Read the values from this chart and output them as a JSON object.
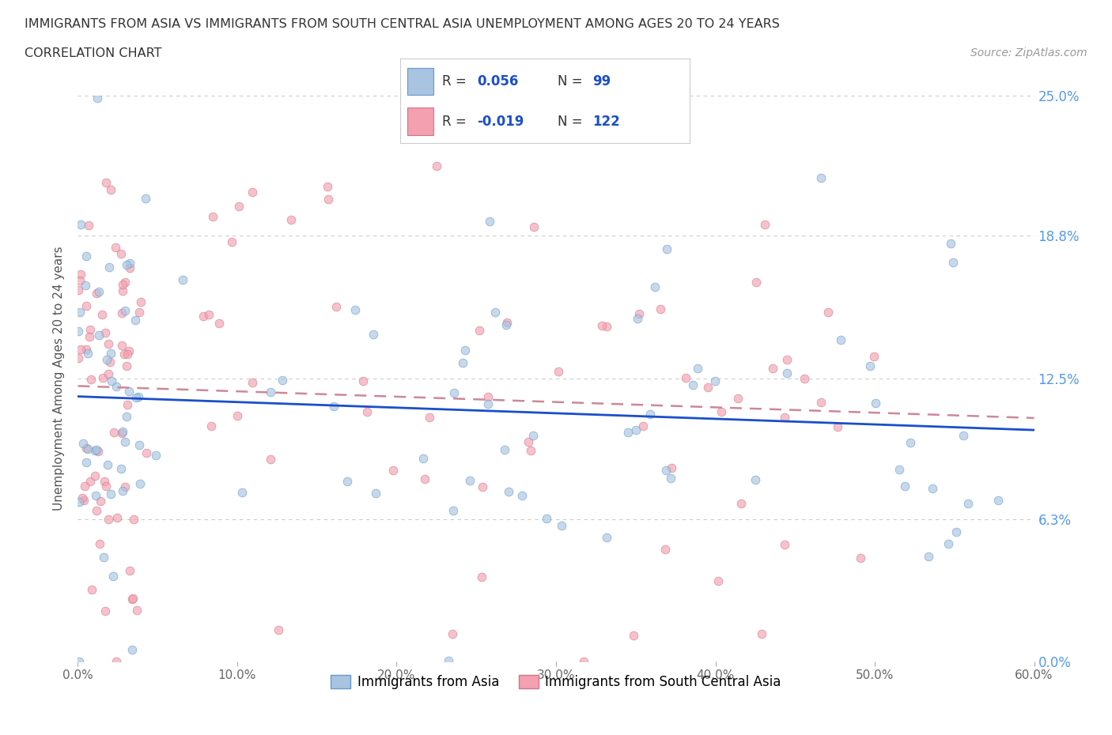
{
  "title_line1": "IMMIGRANTS FROM ASIA VS IMMIGRANTS FROM SOUTH CENTRAL ASIA UNEMPLOYMENT AMONG AGES 20 TO 24 YEARS",
  "title_line2": "CORRELATION CHART",
  "source_text": "Source: ZipAtlas.com",
  "ylabel": "Unemployment Among Ages 20 to 24 years",
  "xlim": [
    0.0,
    0.6
  ],
  "ylim": [
    0.0,
    0.25
  ],
  "xtick_labels": [
    "0.0%",
    "10.0%",
    "20.0%",
    "30.0%",
    "40.0%",
    "50.0%",
    "60.0%"
  ],
  "xtick_values": [
    0.0,
    0.1,
    0.2,
    0.3,
    0.4,
    0.5,
    0.6
  ],
  "ytick_labels": [
    "0.0%",
    "6.3%",
    "12.5%",
    "18.8%",
    "25.0%"
  ],
  "ytick_values": [
    0.0,
    0.063,
    0.125,
    0.188,
    0.25
  ],
  "grid_color": "#cccccc",
  "color_blue": "#a8c4e0",
  "color_pink": "#f4a0b0",
  "line_color_blue": "#1a4fcc",
  "line_color_pink": "#cc8899",
  "edge_color_blue": "#6699cc",
  "edge_color_pink": "#cc7788",
  "R_blue": 0.056,
  "N_blue": 99,
  "R_pink": -0.019,
  "N_pink": 122,
  "legend_label_blue": "Immigrants from Asia",
  "legend_label_pink": "Immigrants from South Central Asia",
  "background_color": "#ffffff",
  "scatter_size": 60,
  "scatter_alpha": 0.65,
  "seed": 12
}
